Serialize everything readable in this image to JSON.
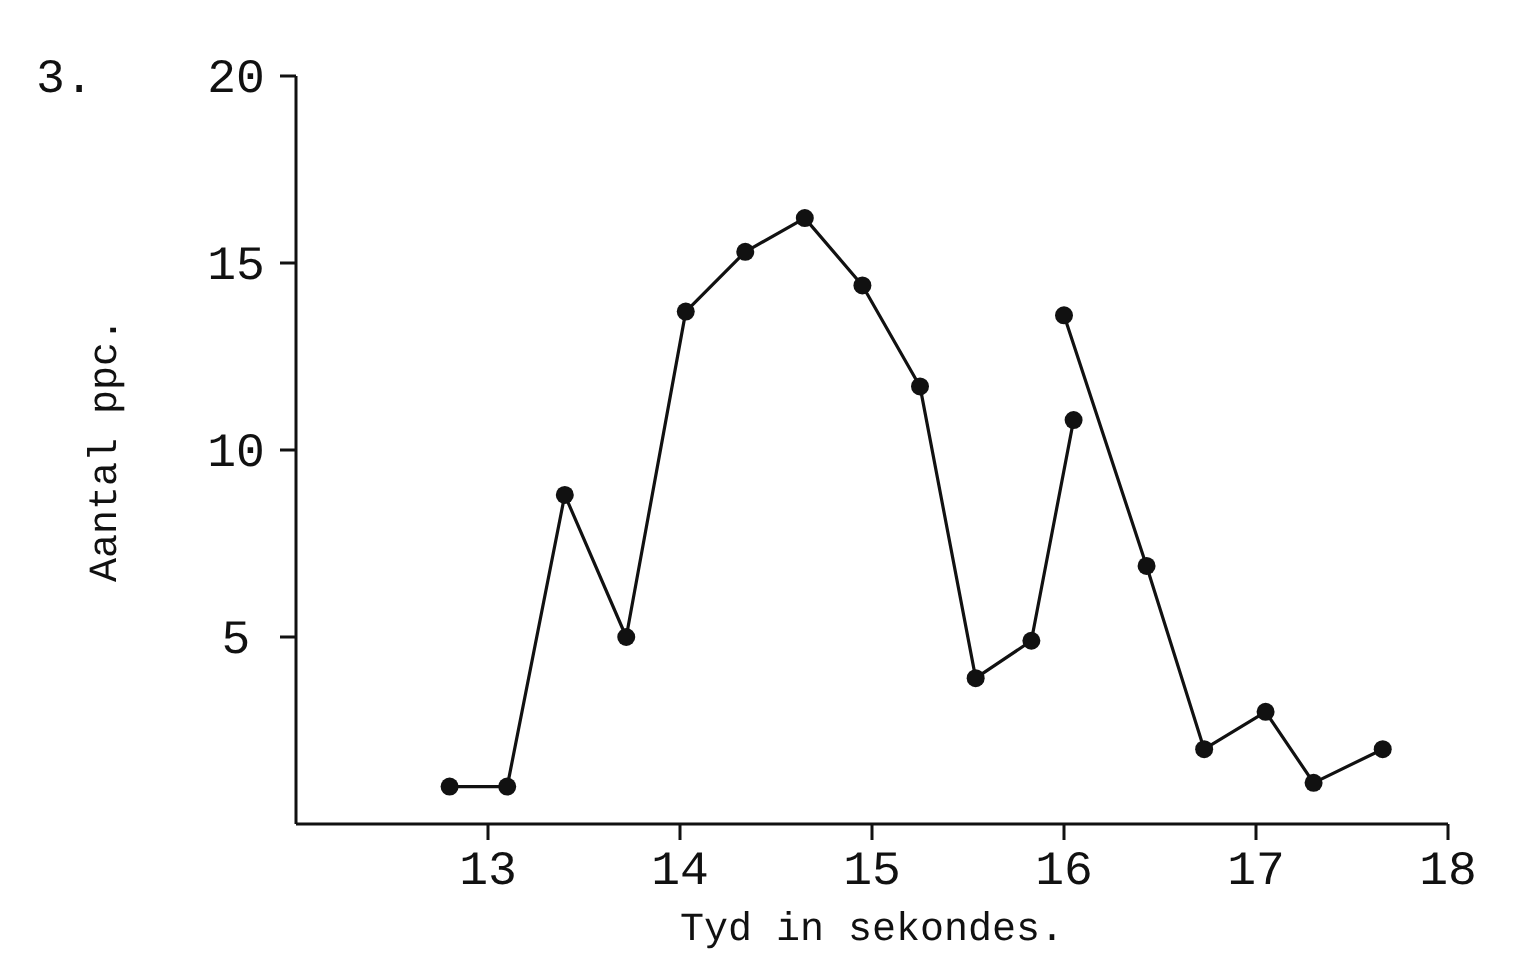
{
  "chart_data": {
    "type": "line",
    "title": "3.",
    "xlabel": "Tyd in sekondes.",
    "ylabel": "Aantal ppc.",
    "series": [
      {
        "color": "#111111",
        "x": [
          12.8,
          13.1,
          13.4,
          13.72,
          14.03,
          14.34,
          14.65,
          14.95,
          15.25,
          15.54,
          15.83,
          16.05
        ],
        "values": [
          1,
          1,
          8.8,
          5,
          13.7,
          15.3,
          16.2,
          14.4,
          11.7,
          3.9,
          4.9,
          10.8
        ]
      },
      {
        "color": "#111111",
        "x": [
          16.0,
          16.43,
          16.73,
          17.05,
          17.3,
          17.66
        ],
        "values": [
          13.6,
          6.9,
          2,
          3,
          1.1,
          2
        ]
      }
    ],
    "xlim": [
      12,
      18
    ],
    "xticks": [
      13,
      14,
      15,
      16,
      17,
      18
    ],
    "ylim": [
      0,
      20
    ],
    "yticks": [
      5,
      10,
      15,
      20
    ],
    "marker": "circle",
    "line_style": "solid",
    "grid": false
  }
}
